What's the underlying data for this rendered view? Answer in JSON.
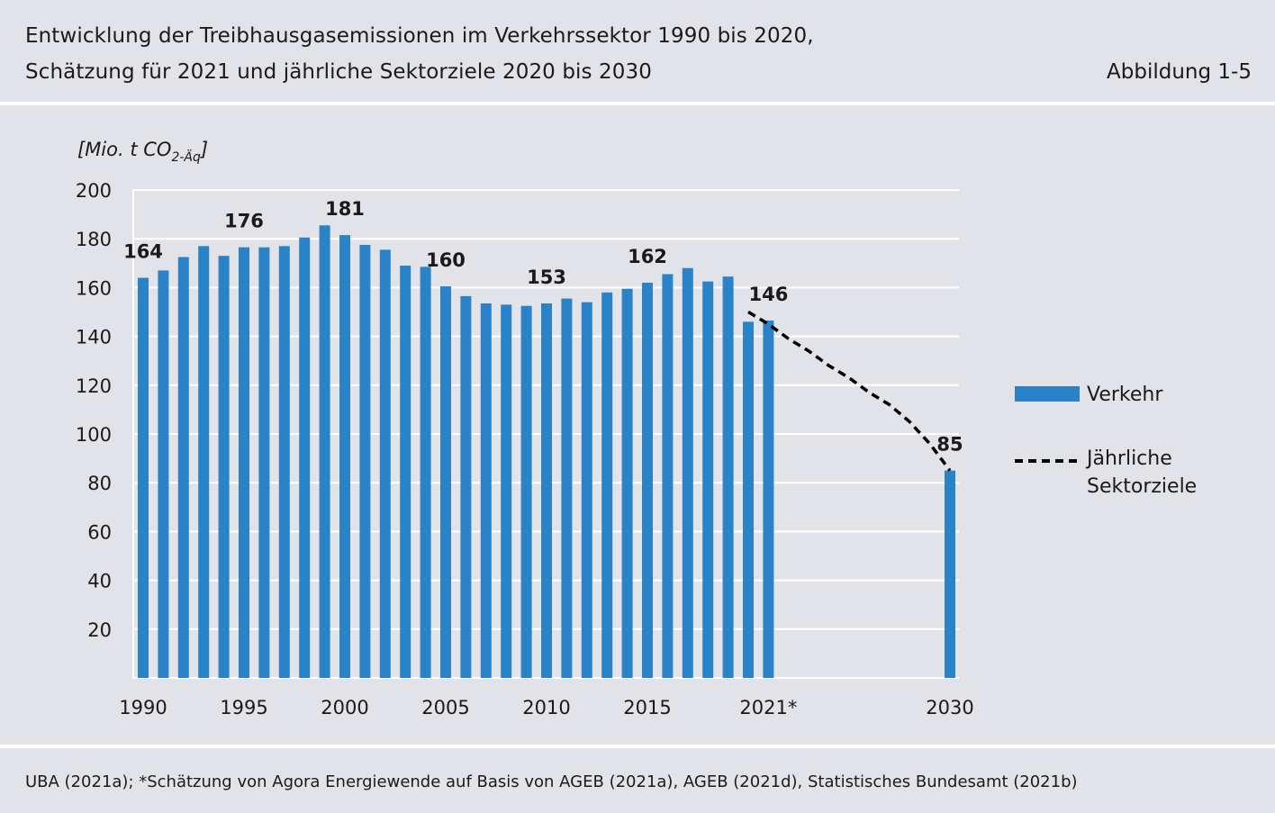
{
  "header": {
    "title_line1": "Entwicklung der Treibhausgasemissionen im Verkehrssektor 1990 bis 2020,",
    "title_line2": "Schätzung für 2021 und jährliche Sektorziele 2020 bis 2030",
    "figure_label": "Abbildung 1-5"
  },
  "footer": {
    "source": "UBA (2021a); *Schätzung von Agora Energiewende auf Basis von AGEB (2021a), AGEB (2021d), Statistisches Bundesamt (2021b)"
  },
  "chart_data": {
    "type": "bar",
    "unit_label": "[Mio. t CO",
    "unit_subscript": "2-Äq",
    "unit_close": "]",
    "ylim": [
      0,
      200
    ],
    "yticks": [
      20,
      40,
      60,
      80,
      100,
      120,
      140,
      160,
      180,
      200
    ],
    "grid": true,
    "xlim": [
      1990,
      2030
    ],
    "xtick_labels": [
      {
        "x": 1990,
        "label": "1990"
      },
      {
        "x": 1995,
        "label": "1995"
      },
      {
        "x": 2000,
        "label": "2000"
      },
      {
        "x": 2005,
        "label": "2005"
      },
      {
        "x": 2010,
        "label": "2010"
      },
      {
        "x": 2015,
        "label": "2015"
      },
      {
        "x": 2021,
        "label": "2021*"
      },
      {
        "x": 2030,
        "label": "2030"
      }
    ],
    "series": [
      {
        "name": "Verkehr",
        "color": "#2a83c9",
        "points": [
          {
            "x": 1990,
            "y": 164
          },
          {
            "x": 1991,
            "y": 167
          },
          {
            "x": 1992,
            "y": 172.5
          },
          {
            "x": 1993,
            "y": 177
          },
          {
            "x": 1994,
            "y": 173
          },
          {
            "x": 1995,
            "y": 176.5
          },
          {
            "x": 1996,
            "y": 176.5
          },
          {
            "x": 1997,
            "y": 177
          },
          {
            "x": 1998,
            "y": 180.5
          },
          {
            "x": 1999,
            "y": 185.5
          },
          {
            "x": 2000,
            "y": 181.5
          },
          {
            "x": 2001,
            "y": 177.5
          },
          {
            "x": 2002,
            "y": 175.5
          },
          {
            "x": 2003,
            "y": 169
          },
          {
            "x": 2004,
            "y": 168.5
          },
          {
            "x": 2005,
            "y": 160.5
          },
          {
            "x": 2006,
            "y": 156.5
          },
          {
            "x": 2007,
            "y": 153.5
          },
          {
            "x": 2008,
            "y": 153
          },
          {
            "x": 2009,
            "y": 152.5
          },
          {
            "x": 2010,
            "y": 153.5
          },
          {
            "x": 2011,
            "y": 155.5
          },
          {
            "x": 2012,
            "y": 154
          },
          {
            "x": 2013,
            "y": 158
          },
          {
            "x": 2014,
            "y": 159.5
          },
          {
            "x": 2015,
            "y": 162
          },
          {
            "x": 2016,
            "y": 165.5
          },
          {
            "x": 2017,
            "y": 168
          },
          {
            "x": 2018,
            "y": 162.5
          },
          {
            "x": 2019,
            "y": 164.5
          },
          {
            "x": 2020,
            "y": 146
          },
          {
            "x": 2021,
            "y": 146.5
          },
          {
            "x": 2030,
            "y": 85
          }
        ]
      },
      {
        "name": "Jährliche Sektorziele",
        "style": "dashed",
        "color": "#000000",
        "points": [
          {
            "x": 2020,
            "y": 150
          },
          {
            "x": 2021,
            "y": 145
          },
          {
            "x": 2022,
            "y": 139
          },
          {
            "x": 2023,
            "y": 134
          },
          {
            "x": 2024,
            "y": 128
          },
          {
            "x": 2025,
            "y": 123
          },
          {
            "x": 2026,
            "y": 117
          },
          {
            "x": 2027,
            "y": 112
          },
          {
            "x": 2028,
            "y": 105
          },
          {
            "x": 2029,
            "y": 96
          },
          {
            "x": 2030,
            "y": 85
          }
        ]
      }
    ],
    "data_labels": [
      {
        "x": 1990,
        "label": "164"
      },
      {
        "x": 1995,
        "label": "176"
      },
      {
        "x": 2000,
        "label": "181"
      },
      {
        "x": 2005,
        "label": "160"
      },
      {
        "x": 2010,
        "label": "153"
      },
      {
        "x": 2015,
        "label": "162"
      },
      {
        "x": 2021,
        "label": "146"
      },
      {
        "x": 2030,
        "label": "85"
      }
    ],
    "legend": {
      "placement": "right",
      "bar_label": "Verkehr",
      "line_label_line1": "Jährliche",
      "line_label_line2": "Sektorziele"
    }
  }
}
